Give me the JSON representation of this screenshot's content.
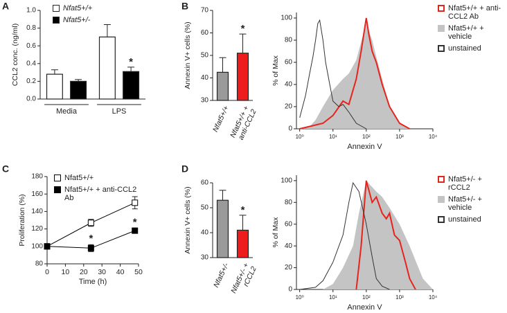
{
  "chart_data": [
    {
      "type": "bar",
      "panel_label": "A",
      "ylabel": "CCL2 conc. (ng/ml)",
      "categories": [
        "Media",
        "LPS"
      ],
      "series": [
        {
          "name": "Nfat5+/+",
          "color": "#ffffff",
          "values": [
            0.28,
            0.7
          ],
          "errors": [
            0.05,
            0.14
          ],
          "markers": [
            null,
            null
          ]
        },
        {
          "name": "Nfat5+/-",
          "color": "#000000",
          "values": [
            0.2,
            0.31
          ],
          "errors": [
            0.02,
            0.05
          ],
          "markers": [
            null,
            "*"
          ]
        }
      ],
      "ylim": [
        0,
        1
      ],
      "yticks": [
        {
          "value": 0,
          "label": "0.0"
        },
        0.2,
        0.4,
        0.6,
        0.8,
        {
          "value": 1,
          "label": "1.0"
        }
      ]
    },
    {
      "type": "bar",
      "panel_label": "B",
      "ylabel": "Annexin V+ cells (%)",
      "categories": [
        "Nfat5+/+",
        "Nfat5+/+ + anti-CCL2"
      ],
      "values": [
        42.5,
        51
      ],
      "errors": [
        6.5,
        8.5
      ],
      "colors": [
        "#9a9a9a",
        "#ee1c1c"
      ],
      "markers": [
        null,
        "*"
      ],
      "ylim": [
        30,
        70
      ],
      "yticks": [
        30,
        40,
        50,
        60,
        70
      ]
    },
    {
      "type": "line",
      "xscale": "log",
      "ylabel": "% of Max",
      "xlabel": "Annexin V",
      "series": [
        {
          "name": "Nfat5+/+ + anti-CCL2 Ab",
          "color": "#e8231c",
          "fill": false,
          "x": [
            1,
            5,
            10,
            20,
            30,
            50,
            70,
            100,
            120,
            150,
            200,
            300,
            500,
            1000,
            2000
          ],
          "values": [
            0,
            5,
            12,
            25,
            22,
            45,
            70,
            100,
            85,
            70,
            60,
            40,
            20,
            5,
            0
          ]
        },
        {
          "name": "Nfat5+/+ + vehicle",
          "color": "#c4c4c4",
          "fill": true,
          "x": [
            1,
            2,
            3,
            5,
            10,
            20,
            30,
            50,
            80,
            100,
            150,
            200,
            300,
            500,
            1000,
            2000
          ],
          "values": [
            0,
            2,
            8,
            20,
            35,
            45,
            50,
            62,
            85,
            95,
            80,
            65,
            45,
            20,
            5,
            0
          ]
        },
        {
          "name": "unstained",
          "color": "#333333",
          "fill": false,
          "x": [
            1,
            1.5,
            2,
            2.5,
            3,
            3.5,
            4,
            5,
            6,
            8,
            10,
            15,
            20,
            30,
            50,
            100
          ],
          "values": [
            10,
            30,
            50,
            65,
            80,
            95,
            98,
            80,
            60,
            40,
            25,
            20,
            22,
            15,
            5,
            0
          ]
        }
      ],
      "xlim": [
        0.8,
        10000
      ],
      "xticks": [
        {
          "value": 1,
          "label": "10⁰"
        },
        {
          "value": 10,
          "label": "10¹"
        },
        {
          "value": 100,
          "label": "10²"
        },
        {
          "value": 1000,
          "label": "10³"
        },
        {
          "value": 10000,
          "label": "10⁴"
        }
      ],
      "ylim": [
        0,
        105
      ],
      "yticks": [
        0,
        20,
        40,
        60,
        80,
        100
      ]
    },
    {
      "type": "line",
      "panel_label": "C",
      "ylabel": "Proliferation (%)",
      "xlabel": "Time (h)",
      "x": [
        0,
        24,
        48
      ],
      "series": [
        {
          "name": "Nfat5+/+",
          "color": "#000000",
          "marker": "square",
          "filled": false,
          "values": [
            100,
            127,
            150
          ],
          "errors": [
            0,
            4,
            7
          ],
          "markers": [
            null,
            null,
            null
          ]
        },
        {
          "name": "Nfat5+/+ + anti-CCL2 Ab",
          "color": "#000000",
          "marker": "square",
          "filled": true,
          "values": [
            100,
            98,
            118
          ],
          "errors": [
            0,
            4,
            3
          ],
          "markers": [
            null,
            "*",
            "*"
          ]
        }
      ],
      "xlim": [
        0,
        50
      ],
      "xticks": [
        0,
        10,
        20,
        30,
        40,
        50
      ],
      "ylim": [
        80,
        180
      ],
      "yticks": [
        80,
        100,
        120,
        140,
        160,
        180
      ]
    },
    {
      "type": "bar",
      "panel_label": "D",
      "ylabel": "Annexin V+ cells (%)",
      "categories": [
        "Nfat5+/-",
        "Nfat5+/- + rCCL2"
      ],
      "values": [
        53,
        41
      ],
      "errors": [
        4,
        6
      ],
      "colors": [
        "#9a9a9a",
        "#ee1c1c"
      ],
      "markers": [
        null,
        "*"
      ],
      "ylim": [
        30,
        60
      ],
      "yticks": [
        30,
        40,
        50,
        60
      ]
    },
    {
      "type": "line",
      "xscale": "log",
      "ylabel": "% of Max",
      "xlabel": "Annexin V",
      "series": [
        {
          "name": "Nfat5+/- + rCCL2",
          "color": "#e8231c",
          "fill": false,
          "x": [
            50,
            70,
            100,
            150,
            200,
            300,
            400,
            500,
            700,
            1000,
            1500,
            2000,
            3000
          ],
          "values": [
            0,
            40,
            100,
            80,
            85,
            70,
            65,
            70,
            50,
            45,
            25,
            10,
            0
          ]
        },
        {
          "name": "Nfat5+/- + vehicle",
          "color": "#c4c4c4",
          "fill": true,
          "x": [
            5,
            10,
            20,
            40,
            60,
            100,
            200,
            300,
            500,
            1000,
            2000,
            5000,
            10000
          ],
          "values": [
            0,
            5,
            20,
            40,
            70,
            100,
            90,
            85,
            75,
            60,
            40,
            10,
            0
          ]
        },
        {
          "name": "unstained",
          "color": "#333333",
          "fill": false,
          "x": [
            1,
            3,
            5,
            10,
            20,
            30,
            40,
            60,
            100,
            150,
            200,
            300,
            500
          ],
          "values": [
            0,
            2,
            8,
            25,
            50,
            80,
            98,
            90,
            60,
            30,
            10,
            3,
            0
          ]
        }
      ],
      "xlim": [
        0.8,
        10000
      ],
      "xticks": [
        {
          "value": 1,
          "label": "10⁰"
        },
        {
          "value": 10,
          "label": "10¹"
        },
        {
          "value": 100,
          "label": "10²"
        },
        {
          "value": 1000,
          "label": "10³"
        },
        {
          "value": 10000,
          "label": "10⁴"
        }
      ],
      "ylim": [
        0,
        105
      ],
      "yticks": [
        0,
        20,
        40,
        60,
        80,
        100
      ]
    }
  ]
}
